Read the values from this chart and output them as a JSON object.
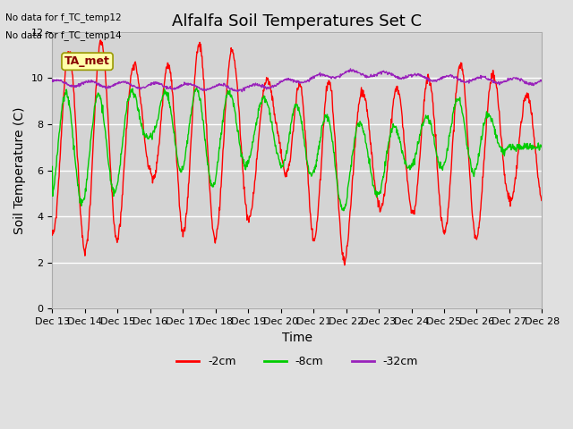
{
  "title": "Alfalfa Soil Temperatures Set C",
  "xlabel": "Time",
  "ylabel": "Soil Temperature (C)",
  "no_data_lines": [
    "No data for f_TC_temp12",
    "No data for f_TC_temp14"
  ],
  "ta_met_label": "TA_met",
  "legend_entries": [
    "-2cm",
    "-8cm",
    "-32cm"
  ],
  "line_colors": [
    "#ff0000",
    "#00cc00",
    "#9922bb"
  ],
  "ylim": [
    0,
    12
  ],
  "yticks": [
    0,
    2,
    4,
    6,
    8,
    10,
    12
  ],
  "n_days": 15,
  "xstart_day": 13,
  "fig_bg": "#e0e0e0",
  "plot_bg": "#d4d4d4",
  "title_fontsize": 13,
  "ylabel_fontsize": 10,
  "xlabel_fontsize": 10,
  "tick_fontsize": 8,
  "grid_color": "#bbbbbb"
}
